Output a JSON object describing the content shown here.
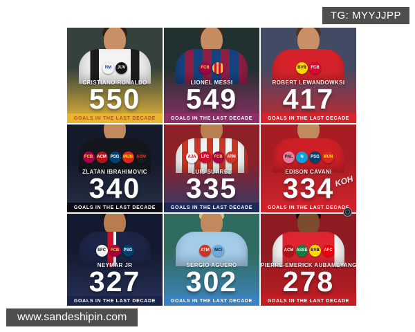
{
  "watermarks": {
    "telegram": "TG: MYYJJPP",
    "website": "www.sandeshipin.com",
    "koh": "KOH"
  },
  "caption": "GOALS IN THE LAST DECADE",
  "players": [
    {
      "name": "CRISTIANO RONALDO",
      "goals": "550",
      "clubs": [
        {
          "abbr": "RM",
          "color": "#f3f3f3",
          "text": "#1a3f8f"
        },
        {
          "abbr": "JUV",
          "color": "#141414",
          "text": "#ffffff"
        }
      ],
      "colors": {
        "bg_top": "#35423c",
        "bg_bottom": "#e7b637",
        "banner": "#e8b532",
        "banner_text": "#b5521b",
        "skin": "#c99068",
        "hair": "#2b2119",
        "jersey": "linear-gradient(90deg,#e9e9e9 0 16%,#1c1c1c 16% 28%,#f3f3f3 28% 72%,#1c1c1c 72% 84%,#e9e9e9 84%)"
      }
    },
    {
      "name": "LIONEL MESSI",
      "goals": "549",
      "clubs": [
        {
          "abbr": "FCB",
          "color": "#a50044",
          "text": "#ffd24a"
        },
        {
          "abbr": "",
          "color": "repeating-linear-gradient(90deg,#f2c63c 0 3px,#c8102e 3px 6px)",
          "text": "#000000"
        }
      ],
      "colors": {
        "bg_top": "#20312f",
        "bg_bottom": "#8c2f66",
        "banner": "#8e2f68",
        "banner_text": "#ffffff",
        "skin": "#c58c62",
        "hair": "#3a2a1c",
        "jersey": "repeating-linear-gradient(90deg,#16437e 0 13px,#8f1e44 13px 26px)"
      }
    },
    {
      "name": "ROBERT LEWANDOWKSI",
      "goals": "417",
      "clubs": [
        {
          "abbr": "BVB",
          "color": "#ffd900",
          "text": "#111111"
        },
        {
          "abbr": "FCB",
          "color": "#dc052d",
          "text": "#ffffff"
        }
      ],
      "colors": {
        "bg_top": "#434a63",
        "bg_bottom": "#c42830",
        "banner": "#d8232a",
        "banner_text": "#ffffff",
        "skin": "#c99068",
        "hair": "#4a3423",
        "jersey": "#d6232b"
      }
    },
    {
      "name": "ZLATAN IBRAHIMOVIC",
      "goals": "340",
      "clubs": [
        {
          "abbr": "FCB",
          "color": "#a50044",
          "text": "#ffd24a"
        },
        {
          "abbr": "ACM",
          "color": "#b11218",
          "text": "#ffffff"
        },
        {
          "abbr": "PSG",
          "color": "#004170",
          "text": "#ffffff"
        },
        {
          "abbr": "MUN",
          "color": "#da291c",
          "text": "#ffe500"
        },
        {
          "abbr": "ACM",
          "color": "#1a1a1a",
          "text": "#e33"
        }
      ],
      "colors": {
        "bg_top": "#141a29",
        "bg_bottom": "#273048",
        "banner": "#0c0d12",
        "banner_text": "#ffffff",
        "skin": "#c08a5e",
        "hair": "#1d150e",
        "jersey": "#15171f"
      }
    },
    {
      "name": "LUIS SUAREZ",
      "goals": "335",
      "clubs": [
        {
          "abbr": "AJA",
          "color": "#f4f4f4",
          "text": "#c8102e"
        },
        {
          "abbr": "LFC",
          "color": "#c8102e",
          "text": "#ffffff"
        },
        {
          "abbr": "FCB",
          "color": "#a50044",
          "text": "#ffd24a"
        },
        {
          "abbr": "ATM",
          "color": "#cb3524",
          "text": "#ffffff"
        }
      ],
      "colors": {
        "bg_top": "#8e2028",
        "bg_bottom": "#323c6b",
        "banner": "#1d2a57",
        "banner_text": "#ffffff",
        "skin": "#b87f52",
        "hair": "#17100a",
        "jersey": "repeating-linear-gradient(90deg,#f2f2f2 0 9px,#cb3524 9px 18px)"
      }
    },
    {
      "name": "EDISON CAVANI",
      "goals": "334",
      "clubs": [
        {
          "abbr": "PAL",
          "color": "#e87ba0",
          "text": "#1a1a1a"
        },
        {
          "abbr": "N",
          "color": "#12a0d7",
          "text": "#ffffff"
        },
        {
          "abbr": "PSG",
          "color": "#004170",
          "text": "#ffffff"
        },
        {
          "abbr": "MUN",
          "color": "#da291c",
          "text": "#ffe500"
        }
      ],
      "colors": {
        "bg_top": "#a81d24",
        "bg_bottom": "#d2242b",
        "banner": "#d1202a",
        "banner_text": "#ffffff",
        "skin": "#c08a5e",
        "hair": "#241812",
        "jersey": "#ce1f27"
      }
    },
    {
      "name": "NEYMAR JR",
      "goals": "327",
      "clubs": [
        {
          "abbr": "SFC",
          "color": "#f4f4f4",
          "text": "#111111"
        },
        {
          "abbr": "FCB",
          "color": "#a50044",
          "text": "#ffd24a"
        },
        {
          "abbr": "PSG",
          "color": "#004170",
          "text": "#ffffff"
        }
      ],
      "colors": {
        "bg_top": "#131a30",
        "bg_bottom": "#28325a",
        "banner": "#19224a",
        "banner_text": "#ffffff",
        "skin": "#b97c50",
        "hair": "#1a120c",
        "jersey": "linear-gradient(90deg,#1c2547 0 40%,#cf1030 40% 48%,#f2f2f2 48% 52%,#1c2547 52%)"
      }
    },
    {
      "name": "SERGIO AGUERO",
      "goals": "302",
      "clubs": [
        {
          "abbr": "ATM",
          "color": "#cb3524",
          "text": "#ffffff"
        },
        {
          "abbr": "MCI",
          "color": "#6cabdd",
          "text": "#0b2240"
        }
      ],
      "colors": {
        "bg_top": "#2f6b5f",
        "bg_bottom": "#3f85c0",
        "banner": "#3b82c4",
        "banner_text": "#ffffff",
        "skin": "#c08a5e",
        "hair": "#d9c089",
        "jersey": "#a3cce9"
      }
    },
    {
      "name": "PIERRE-EMERICK AUBAMEYANG",
      "goals": "278",
      "clubs": [
        {
          "abbr": "ACM",
          "color": "#b11218",
          "text": "#ffffff"
        },
        {
          "abbr": "ASSE",
          "color": "#0c8040",
          "text": "#ffffff"
        },
        {
          "abbr": "BVB",
          "color": "#ffd900",
          "text": "#111111"
        },
        {
          "abbr": "AFC",
          "color": "#ef0107",
          "text": "#ffffff"
        }
      ],
      "colors": {
        "bg_top": "#8e1b21",
        "bg_bottom": "#c01e24",
        "banner": "#c41e24",
        "banner_text": "#ffffff",
        "skin": "#7d4b2e",
        "hair": "#120d0a",
        "jersey": "linear-gradient(90deg,#f2f2f2 0 14%,#df2630 14% 86%,#f2f2f2 86%)"
      }
    }
  ]
}
